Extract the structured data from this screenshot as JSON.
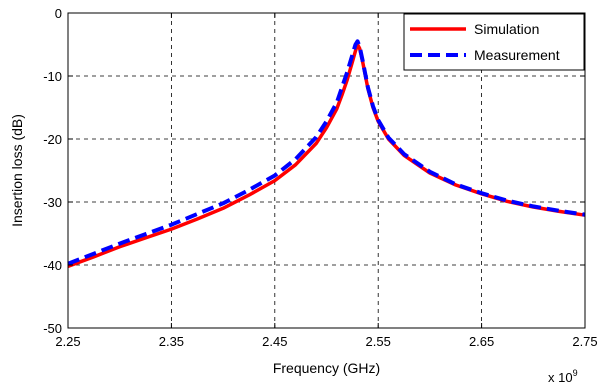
{
  "chart_data": {
    "type": "line",
    "title": "",
    "xlabel": "Frequency (GHz)",
    "ylabel": "Insertion loss (dB)",
    "x_multiplier_label": "x 10",
    "x_multiplier_exponent": "9",
    "xlim": [
      2.25,
      2.75
    ],
    "ylim": [
      -50,
      0
    ],
    "x_ticks": [
      "2.25",
      "2.35",
      "2.45",
      "2.55",
      "2.65",
      "2.75"
    ],
    "y_ticks": [
      "0",
      "-10",
      "-20",
      "-30",
      "-40",
      "-50"
    ],
    "x_tick_values": [
      2.25,
      2.35,
      2.45,
      2.55,
      2.65,
      2.75
    ],
    "y_tick_values": [
      0,
      -10,
      -20,
      -30,
      -40,
      -50
    ],
    "grid": true,
    "legend_position": "top-right",
    "series": [
      {
        "name": "Simulation",
        "color": "#ff0000",
        "style": "solid",
        "x": [
          2.25,
          2.275,
          2.3,
          2.325,
          2.35,
          2.375,
          2.4,
          2.425,
          2.45,
          2.47,
          2.49,
          2.5,
          2.51,
          2.515,
          2.52,
          2.525,
          2.528,
          2.53,
          2.532,
          2.535,
          2.54,
          2.545,
          2.55,
          2.56,
          2.575,
          2.6,
          2.625,
          2.65,
          2.675,
          2.7,
          2.725,
          2.75
        ],
        "y": [
          -40.2,
          -38.7,
          -37.1,
          -35.7,
          -34.3,
          -32.7,
          -31.0,
          -28.9,
          -26.6,
          -24.1,
          -20.7,
          -18.2,
          -15.2,
          -13.0,
          -10.6,
          -7.8,
          -6.0,
          -5.0,
          -5.6,
          -7.8,
          -12.0,
          -15.0,
          -17.2,
          -20.0,
          -22.6,
          -25.4,
          -27.3,
          -28.7,
          -29.9,
          -30.8,
          -31.5,
          -32.1
        ]
      },
      {
        "name": "Measurement",
        "color": "#0000ff",
        "style": "dashed",
        "x": [
          2.25,
          2.275,
          2.3,
          2.325,
          2.35,
          2.375,
          2.4,
          2.425,
          2.45,
          2.47,
          2.49,
          2.5,
          2.51,
          2.515,
          2.52,
          2.525,
          2.528,
          2.53,
          2.532,
          2.535,
          2.54,
          2.545,
          2.55,
          2.56,
          2.575,
          2.6,
          2.625,
          2.65,
          2.675,
          2.7,
          2.725,
          2.75
        ],
        "y": [
          -39.8,
          -38.2,
          -36.6,
          -35.1,
          -33.6,
          -31.9,
          -30.2,
          -28.1,
          -25.8,
          -23.2,
          -19.7,
          -17.2,
          -14.2,
          -11.8,
          -9.4,
          -6.7,
          -5.0,
          -4.5,
          -5.3,
          -7.6,
          -11.8,
          -14.8,
          -17.0,
          -19.8,
          -22.4,
          -25.2,
          -27.2,
          -28.6,
          -29.8,
          -30.7,
          -31.4,
          -32.0
        ]
      }
    ]
  }
}
